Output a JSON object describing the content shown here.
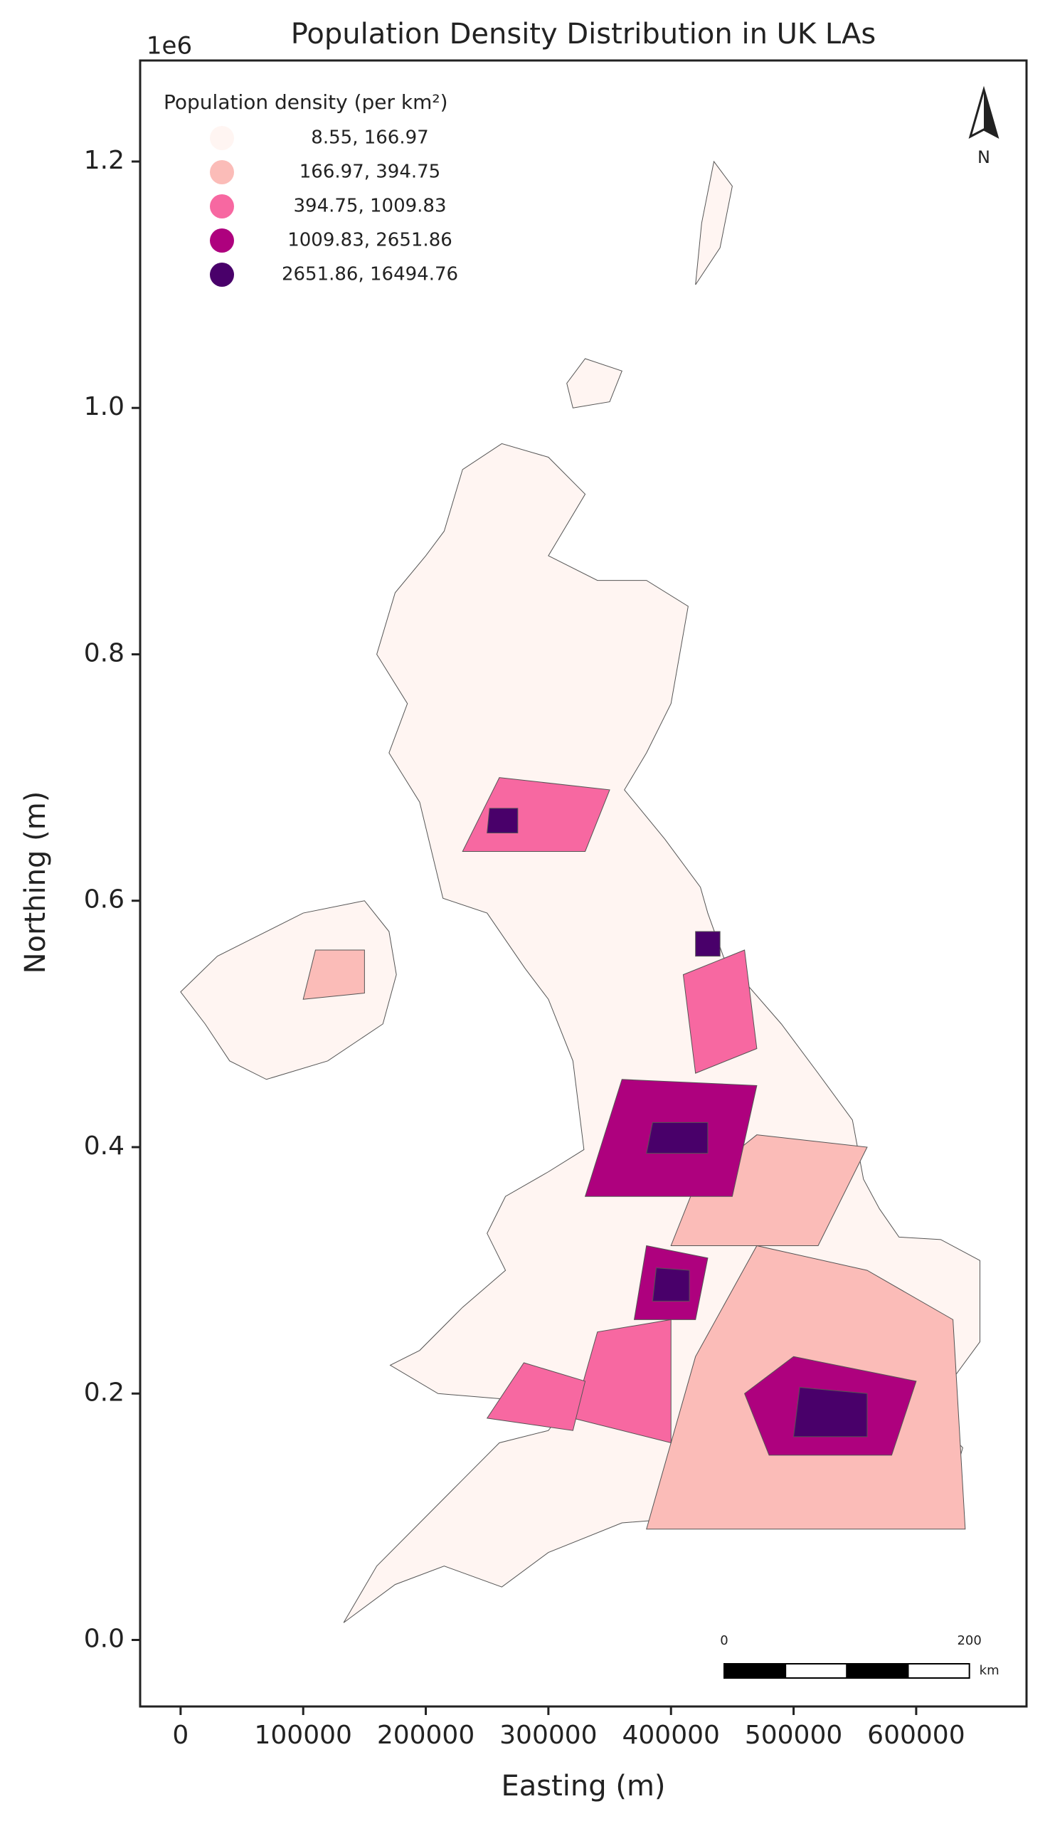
{
  "chart_data": {
    "type": "map",
    "title": "Population Density Distribution in UK LAs",
    "x_label": "Easting (m)",
    "y_label": "Northing (m)",
    "y_offset_label": "1e6",
    "xlim": [
      -33000,
      690000
    ],
    "ylim": [
      -54000,
      1282000
    ],
    "xticks": [
      0,
      100000,
      200000,
      300000,
      400000,
      500000,
      600000
    ],
    "yticks": [
      {
        "value": 0,
        "label": "0.0"
      },
      {
        "value": 200000,
        "label": "0.2"
      },
      {
        "value": 400000,
        "label": "0.4"
      },
      {
        "value": 600000,
        "label": "0.6"
      },
      {
        "value": 800000,
        "label": "0.8"
      },
      {
        "value": 1000000,
        "label": "1.0"
      },
      {
        "value": 1200000,
        "label": "1.2"
      }
    ],
    "legend": {
      "title": "Population density (per km²)",
      "position": "upper left",
      "classes": [
        "8.55,   166.97",
        "166.97,   394.75",
        "394.75,  1009.83",
        "1009.83,  2651.86",
        "2651.86, 16494.76"
      ],
      "colors": [
        "#fff5f2",
        "#fbbcb8",
        "#f768a1",
        "#ae017e",
        "#49006a"
      ]
    },
    "north_arrow": "N",
    "scale_bar": {
      "ticks": [
        0,
        200
      ],
      "unit": "km"
    }
  }
}
